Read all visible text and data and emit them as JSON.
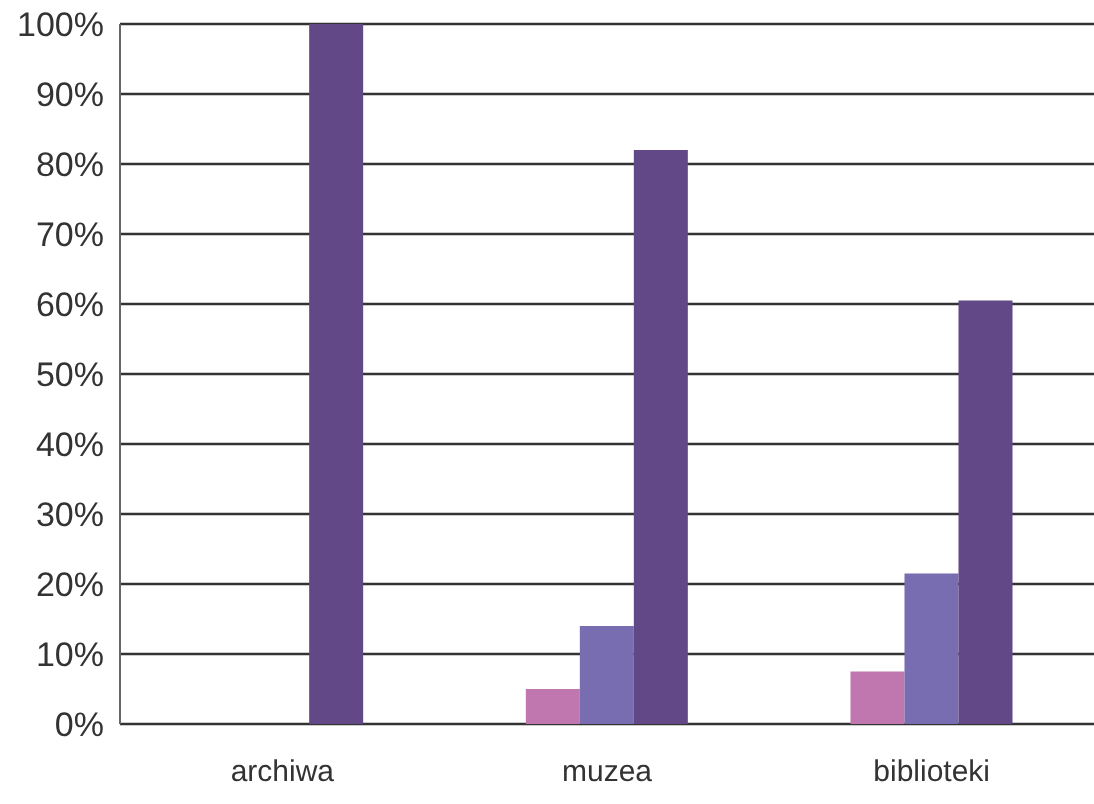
{
  "chart_data": {
    "type": "bar",
    "categories": [
      "archiwa",
      "muzea",
      "biblioteki"
    ],
    "series": [
      {
        "color": "#c077b0",
        "values": [
          null,
          5,
          7.5
        ]
      },
      {
        "color": "#776db0",
        "values": [
          null,
          14,
          21.5
        ]
      },
      {
        "color": "#624886",
        "values": [
          100,
          82,
          60.5
        ]
      }
    ],
    "ylim": [
      0,
      100
    ],
    "yticks": [
      {
        "value": 0,
        "label": "0%"
      },
      {
        "value": 10,
        "label": "10%"
      },
      {
        "value": 20,
        "label": "20%"
      },
      {
        "value": 30,
        "label": "30%"
      },
      {
        "value": 40,
        "label": "40%"
      },
      {
        "value": 50,
        "label": "50%"
      },
      {
        "value": 60,
        "label": "60%"
      },
      {
        "value": 70,
        "label": "70%"
      },
      {
        "value": 80,
        "label": "80%"
      },
      {
        "value": 90,
        "label": "90%"
      },
      {
        "value": 100,
        "label": "100%"
      }
    ],
    "grid": "y",
    "legend": false
  }
}
